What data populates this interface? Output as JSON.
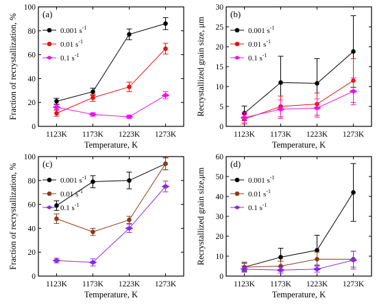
{
  "chart_data": [
    {
      "type": "line",
      "panel_label": "(a)",
      "xlabel": "Temperature, K",
      "ylabel": "Fraction of recrystallization, %",
      "categories": [
        "1123K",
        "1173K",
        "1223K",
        "1273K"
      ],
      "ylim": [
        0,
        100
      ],
      "yticks": [
        0,
        20,
        40,
        60,
        80,
        100
      ],
      "legend_position": "top-left",
      "series": [
        {
          "name": "0.001 s",
          "name_sup": "-1",
          "color": "#000000",
          "values": [
            21,
            29,
            77,
            86
          ],
          "errors": [
            2.5,
            3,
            4.5,
            5
          ]
        },
        {
          "name": "0.01 s",
          "name_sup": "-1",
          "color": "#e8120f",
          "values": [
            11,
            24,
            33,
            65
          ],
          "errors": [
            2.5,
            3,
            4,
            4.5
          ]
        },
        {
          "name": "0.1 s",
          "name_sup": "-1",
          "color": "#f012e8",
          "values": [
            16,
            10,
            8,
            26
          ],
          "errors": [
            2,
            1.5,
            1.5,
            3
          ]
        }
      ]
    },
    {
      "type": "line",
      "panel_label": "(b)",
      "xlabel": "Temperature, K",
      "ylabel": "Recrystallized grain size, μm",
      "categories": [
        "1123K",
        "1173K",
        "1223K",
        "1273K"
      ],
      "ylim": [
        0,
        30
      ],
      "yticks": [
        0,
        5,
        10,
        15,
        20,
        25,
        30
      ],
      "legend_position": "top-left",
      "series": [
        {
          "name": "0.001 s",
          "name_sup": "-1",
          "color": "#000000",
          "values": [
            3.3,
            11,
            10.8,
            18.8
          ],
          "errors": [
            1.8,
            6.6,
            6.2,
            9
          ]
        },
        {
          "name": "0.01 s",
          "name_sup": "-1",
          "color": "#e8120f",
          "values": [
            1.8,
            5,
            5.6,
            11.5
          ],
          "errors": [
            1.2,
            2.6,
            2.8,
            5.5
          ]
        },
        {
          "name": "0.1 s",
          "name_sup": "-1",
          "color": "#f012e8",
          "values": [
            2.2,
            4.3,
            4.6,
            8.8
          ],
          "errors": [
            1.3,
            2.3,
            2.3,
            3.4
          ]
        }
      ]
    },
    {
      "type": "line",
      "panel_label": "(c)",
      "xlabel": "Temperature, K",
      "ylabel": "Fraction of recrystallization, %",
      "categories": [
        "1123K",
        "1173K",
        "1223K",
        "1273K"
      ],
      "ylim": [
        0,
        100
      ],
      "yticks": [
        0,
        20,
        40,
        60,
        80,
        100
      ],
      "legend_position": "top-left",
      "series": [
        {
          "name": "0.001 s",
          "name_sup": "-1",
          "color": "#000000",
          "values": [
            59,
            79,
            80,
            94
          ],
          "errors": [
            4,
            5,
            7,
            5
          ]
        },
        {
          "name": "0.01 s",
          "name_sup": "-1",
          "color": "#8b3a1a",
          "values": [
            48,
            37,
            47,
            94
          ],
          "errors": [
            4,
            3,
            3,
            5
          ]
        },
        {
          "name": "0.1 s",
          "name_sup": "-1",
          "color": "#8a2be2",
          "values": [
            13,
            11.5,
            40,
            75
          ],
          "errors": [
            2,
            3,
            3.5,
            4.5
          ]
        }
      ]
    },
    {
      "type": "line",
      "panel_label": "(d)",
      "xlabel": "Temperature, K",
      "ylabel": "Recrystallized grain size,μm",
      "categories": [
        "1123K",
        "1173K",
        "1223K",
        "1273K"
      ],
      "ylim": [
        0,
        60
      ],
      "yticks": [
        0,
        10,
        20,
        30,
        40,
        50,
        60
      ],
      "legend_position": "top-left",
      "series": [
        {
          "name": "0.001 s",
          "name_sup": "-1",
          "color": "#000000",
          "values": [
            4.5,
            9.5,
            13,
            42
          ],
          "errors": [
            2,
            4.5,
            7.5,
            14.5
          ]
        },
        {
          "name": "0.01 s",
          "name_sup": "-1",
          "color": "#8b3a1a",
          "values": [
            4.5,
            5,
            8.5,
            8.5
          ],
          "errors": [
            2.5,
            2.5,
            3.5,
            4
          ]
        },
        {
          "name": "0.1 s",
          "name_sup": "-1",
          "color": "#8a2be2",
          "values": [
            3.5,
            3,
            3.5,
            8
          ],
          "errors": [
            1.5,
            1.5,
            1.5,
            4.5
          ]
        }
      ]
    }
  ]
}
